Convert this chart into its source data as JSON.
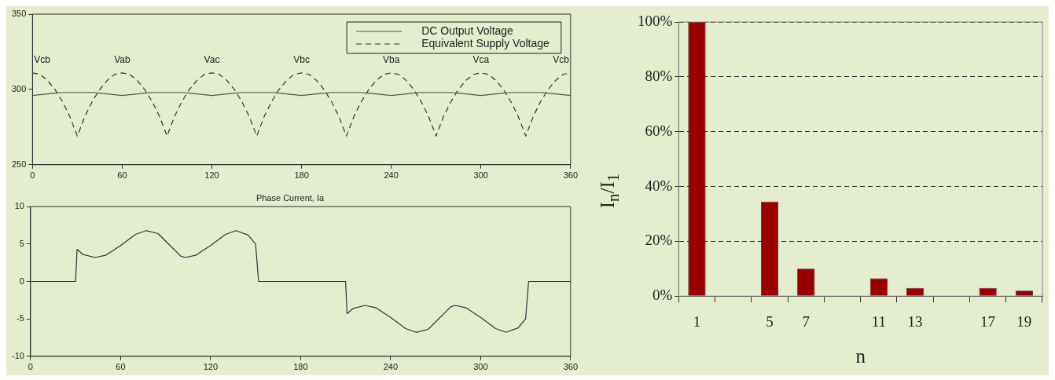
{
  "chart_data": [
    {
      "type": "line",
      "x": [
        0,
        5,
        10,
        15,
        20,
        25,
        30,
        35,
        40,
        45,
        50,
        55,
        60,
        65,
        70,
        75,
        80,
        85,
        90,
        95,
        100,
        105,
        110,
        115,
        120,
        125,
        130,
        135,
        140,
        145,
        150,
        155,
        160,
        165,
        170,
        175,
        180,
        185,
        190,
        195,
        200,
        205,
        210,
        215,
        220,
        225,
        230,
        235,
        240,
        245,
        250,
        255,
        260,
        265,
        270,
        275,
        280,
        285,
        290,
        295,
        300,
        305,
        310,
        315,
        320,
        325,
        330,
        335,
        340,
        345,
        350,
        355,
        360
      ],
      "xlim": [
        0,
        360
      ],
      "xticks": [
        0,
        60,
        120,
        180,
        240,
        300,
        360
      ],
      "ylim": [
        250,
        350
      ],
      "yticks": [
        250,
        300,
        350
      ],
      "grid": false,
      "legend": "top right",
      "marker": "none",
      "series": [
        {
          "name": "DC Output Voltage",
          "color": "#555555",
          "line_style": "solid",
          "values": [
            296,
            296.5,
            297,
            297.5,
            298,
            298,
            298,
            298,
            298,
            297.5,
            297,
            296.5,
            296,
            296.5,
            297,
            297.5,
            298,
            298,
            298,
            298,
            298,
            297.5,
            297,
            296.5,
            296,
            296.5,
            297,
            297.5,
            298,
            298,
            298,
            298,
            298,
            297.5,
            297,
            296.5,
            296,
            296.5,
            297,
            297.5,
            298,
            298,
            298,
            298,
            298,
            297.5,
            297,
            296.5,
            296,
            296.5,
            297,
            297.5,
            298,
            298,
            298,
            298,
            298,
            297.5,
            297,
            296.5,
            296,
            296.5,
            297,
            297.5,
            298,
            298,
            298,
            298,
            298,
            297.5,
            297,
            296.5,
            296
          ]
        },
        {
          "name": "Equivalent Supply Voltage",
          "color": "#333333",
          "line_style": "dashed",
          "values": [
            311,
            310,
            306,
            300,
            292,
            282,
            269,
            282,
            292,
            300,
            306,
            310,
            311,
            310,
            306,
            300,
            292,
            282,
            269,
            282,
            292,
            300,
            306,
            310,
            311,
            310,
            306,
            300,
            292,
            282,
            269,
            282,
            292,
            300,
            306,
            310,
            311,
            310,
            306,
            300,
            292,
            282,
            269,
            282,
            292,
            300,
            306,
            310,
            311,
            310,
            306,
            300,
            292,
            282,
            269,
            282,
            292,
            300,
            306,
            310,
            311,
            310,
            306,
            300,
            292,
            282,
            269,
            282,
            292,
            300,
            306,
            310,
            311
          ]
        }
      ],
      "annotations": [
        {
          "text": "Vcb",
          "x": 0,
          "y": 311
        },
        {
          "text": "Vab",
          "x": 60,
          "y": 311
        },
        {
          "text": "Vac",
          "x": 120,
          "y": 311
        },
        {
          "text": "Vbc",
          "x": 180,
          "y": 311
        },
        {
          "text": "Vba",
          "x": 240,
          "y": 311
        },
        {
          "text": "Vca",
          "x": 300,
          "y": 311
        },
        {
          "text": "Vcb",
          "x": 360,
          "y": 311
        }
      ]
    },
    {
      "type": "line",
      "title": "Phase Current, Ia",
      "x": [
        0,
        30,
        31,
        35,
        43,
        50,
        60,
        70,
        77,
        85,
        93,
        100,
        103,
        110,
        120,
        130,
        137,
        145,
        150,
        152,
        210,
        211,
        215,
        223,
        230,
        240,
        250,
        257,
        265,
        273,
        280,
        283,
        290,
        300,
        310,
        317,
        325,
        330,
        332,
        360
      ],
      "xlim": [
        0,
        360
      ],
      "xticks": [
        0,
        60,
        120,
        180,
        240,
        300,
        360
      ],
      "ylim": [
        -10,
        10
      ],
      "yticks": [
        -10,
        -5,
        0,
        5,
        10
      ],
      "grid": false,
      "marker": "none",
      "series": [
        {
          "color": "#333344",
          "line_style": "solid",
          "values": [
            0,
            0,
            4.3,
            3.6,
            3.2,
            3.5,
            4.8,
            6.3,
            6.8,
            6.4,
            4.8,
            3.4,
            3.2,
            3.5,
            4.8,
            6.3,
            6.8,
            6.2,
            5,
            0,
            0,
            -4.3,
            -3.6,
            -3.2,
            -3.5,
            -4.8,
            -6.3,
            -6.8,
            -6.4,
            -4.8,
            -3.4,
            -3.2,
            -3.5,
            -4.8,
            -6.3,
            -6.8,
            -6.2,
            -5,
            0,
            0
          ]
        }
      ]
    },
    {
      "type": "bar",
      "xlabel": "n",
      "ylabel": "I$_{n}$/I$_{1}$",
      "categories": [
        "1",
        null,
        "5",
        "7",
        null,
        "11",
        "13",
        null,
        "17",
        "19"
      ],
      "values": [
        100,
        null,
        34.5,
        10,
        null,
        6.5,
        3,
        null,
        3,
        2
      ],
      "color": "#990000",
      "ylim": [
        0,
        100
      ],
      "yticks": [
        {
          "value": 0,
          "label": "0%"
        },
        {
          "value": 20,
          "label": "20%"
        },
        {
          "value": 40,
          "label": "40%"
        },
        {
          "value": 60,
          "label": "60%"
        },
        {
          "value": 80,
          "label": "80%"
        },
        {
          "value": 100,
          "label": "100%"
        }
      ],
      "grid": "y"
    }
  ]
}
